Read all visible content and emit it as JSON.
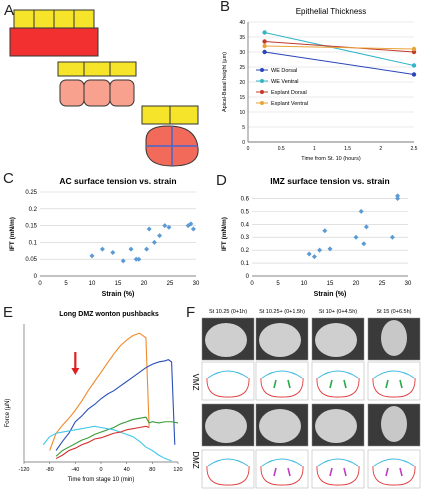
{
  "panels": {
    "A": "A",
    "B": "B",
    "C": "C",
    "D": "D",
    "E": "E",
    "F": "F"
  },
  "colors": {
    "we_dorsal": "#2a45b8",
    "we_ventral": "#33b5c8",
    "explant_dorsal": "#c0392b",
    "explant_ventral": "#e8a33a",
    "c_points": "#5b9bd5",
    "cell_yellow": "#f5e42a",
    "cell_red": "#f26a5a",
    "cell_pink": "#f7a18e",
    "e_orange": "#f08a2a",
    "e_blue": "#2a4fb8",
    "e_green": "#3a9a3a",
    "e_red": "#d23030",
    "e_cyan": "#40c8e8",
    "f_cyan": "#3ab8e0",
    "f_red": "#e03a3a",
    "f_green": "#2aa84a",
    "f_magenta": "#c040c0"
  },
  "chart_data": [
    {
      "panel": "B",
      "type": "line",
      "title": "Epithelial Thickness",
      "xlabel": "Time from St. 10 (hours)",
      "ylabel": "Apical-Basal height (µm)",
      "xlim": [
        0,
        2.5
      ],
      "ylim": [
        0,
        40
      ],
      "xticks": [
        "0",
        "0.5",
        "1",
        "1.5",
        "2",
        "2.5"
      ],
      "yticks": [
        "0",
        "5",
        "10",
        "15",
        "20",
        "25",
        "30",
        "35",
        "40"
      ],
      "legend_position": "bottom-left",
      "series": [
        {
          "name": "WE Dorsal",
          "color_key": "we_dorsal",
          "x": [
            0.25,
            2.5
          ],
          "y": [
            30,
            22.5
          ]
        },
        {
          "name": "WE Ventral",
          "color_key": "we_ventral",
          "x": [
            0.25,
            2.5
          ],
          "y": [
            36.5,
            25.5
          ]
        },
        {
          "name": "Explant Dorsal",
          "color_key": "explant_dorsal",
          "x": [
            0.25,
            2.5
          ],
          "y": [
            33.5,
            30
          ]
        },
        {
          "name": "Explant Ventral",
          "color_key": "explant_ventral",
          "x": [
            0.25,
            2.5
          ],
          "y": [
            32,
            31
          ]
        }
      ]
    },
    {
      "panel": "C",
      "type": "scatter",
      "title": "AC surface tension vs. strain",
      "xlabel": "Strain (%)",
      "ylabel": "IFT (mN/m)",
      "xlim": [
        0,
        30
      ],
      "ylim": [
        0,
        0.25
      ],
      "xticks": [
        "0",
        "5",
        "10",
        "15",
        "20",
        "25",
        "30"
      ],
      "yticks": [
        "0",
        "0.05",
        "0.1",
        "0.15",
        "0.2",
        "0.25"
      ],
      "x": [
        10,
        12,
        14,
        16,
        17.5,
        18.5,
        19,
        20.5,
        21,
        22,
        23,
        24,
        24.8,
        28.5,
        29,
        29.5
      ],
      "y": [
        0.06,
        0.08,
        0.07,
        0.045,
        0.08,
        0.05,
        0.05,
        0.08,
        0.14,
        0.1,
        0.12,
        0.15,
        0.145,
        0.15,
        0.155,
        0.14
      ]
    },
    {
      "panel": "D",
      "type": "scatter",
      "title": "IMZ surface tension vs. strain",
      "xlabel": "Strain (%)",
      "ylabel": "IFT (mN/m)",
      "xlim": [
        0,
        30
      ],
      "ylim": [
        0,
        0.65
      ],
      "xticks": [
        "0",
        "5",
        "10",
        "15",
        "20",
        "25",
        "30"
      ],
      "yticks": [
        "0",
        "0.1",
        "0.2",
        "0.3",
        "0.4",
        "0.5",
        "0.6"
      ],
      "x": [
        11,
        12,
        13,
        14,
        15,
        20,
        21,
        21.5,
        22,
        27,
        28,
        28
      ],
      "y": [
        0.17,
        0.15,
        0.2,
        0.35,
        0.21,
        0.3,
        0.5,
        0.25,
        0.38,
        0.3,
        0.6,
        0.62
      ]
    },
    {
      "panel": "E",
      "type": "line",
      "title": "Long DMZ wonton pushbacks",
      "xlabel": "Time from stage 10 (min)",
      "ylabel": "Force (µN)",
      "xlim": [
        -120,
        120
      ],
      "ylim": [
        0,
        12
      ],
      "xticks": [
        "-120",
        "-80",
        "-40",
        "0",
        "40",
        "80",
        "120"
      ],
      "series": [
        {
          "color_key": "e_orange",
          "x": [
            -80,
            -70,
            -60,
            -50,
            -40,
            -30,
            -20,
            -10,
            0,
            10,
            20,
            30,
            40,
            50,
            60,
            70,
            75
          ],
          "y": [
            1.0,
            2.5,
            3.2,
            3.8,
            4.5,
            5.3,
            6.2,
            7.0,
            7.8,
            8.6,
            9.4,
            10.1,
            10.6,
            11.0,
            11.2,
            10.8,
            3.0
          ]
        },
        {
          "color_key": "e_blue",
          "x": [
            -70,
            -60,
            -50,
            -40,
            -30,
            -20,
            -10,
            0,
            10,
            20,
            30,
            40,
            50,
            60,
            70,
            80,
            90,
            100,
            105,
            110,
            115
          ],
          "y": [
            1.0,
            1.8,
            2.5,
            3.5,
            4.0,
            4.6,
            5.0,
            5.5,
            5.9,
            6.2,
            6.6,
            7.0,
            7.4,
            7.8,
            8.2,
            8.5,
            8.7,
            8.8,
            8.9,
            8.7,
            1.5
          ]
        },
        {
          "color_key": "e_green",
          "x": [
            -70,
            -60,
            -50,
            -40,
            -30,
            -20,
            -10,
            0,
            10,
            20,
            30,
            40,
            50,
            60,
            70,
            75,
            80,
            90,
            100,
            110,
            120
          ],
          "y": [
            0.5,
            1.0,
            1.3,
            1.6,
            1.9,
            2.1,
            2.4,
            2.6,
            2.8,
            3.0,
            3.3,
            3.5,
            3.7,
            3.8,
            3.9,
            3.4,
            3.5,
            3.4,
            3.5,
            3.5,
            3.4
          ]
        },
        {
          "color_key": "e_cyan",
          "x": [
            -90,
            -80,
            -70,
            -60,
            -50,
            -40,
            -30,
            -20,
            -10,
            0,
            10,
            20,
            30,
            40,
            50,
            60,
            70,
            80,
            90,
            100,
            110
          ],
          "y": [
            1.5,
            2.2,
            2.5,
            2.6,
            2.7,
            2.8,
            2.9,
            3.0,
            3.1,
            3.0,
            2.9,
            2.8,
            2.6,
            2.4,
            2.2,
            1.8,
            1.3,
            1.0,
            0.6,
            0.3,
            0.1
          ]
        },
        {
          "color_key": "e_red",
          "x": [
            -70,
            -60,
            -50,
            -40,
            -30,
            -20,
            -10,
            0,
            10,
            20,
            30,
            40,
            50,
            60,
            70,
            75
          ],
          "y": [
            0.3,
            0.6,
            1.0,
            1.2,
            1.5,
            1.7,
            2.0,
            2.1,
            2.3,
            2.5,
            2.6,
            2.8,
            2.9,
            3.0,
            3.1,
            3.0
          ]
        }
      ]
    }
  ],
  "panel_f": {
    "headers": [
      "St 10.25 (0+1h)",
      "St 10.25+ (0+1.5h)",
      "St 10+ (0+4.5h)",
      "St 15 (0+6.5h)"
    ],
    "row_labels": [
      "VMZ",
      "DMZ"
    ]
  }
}
